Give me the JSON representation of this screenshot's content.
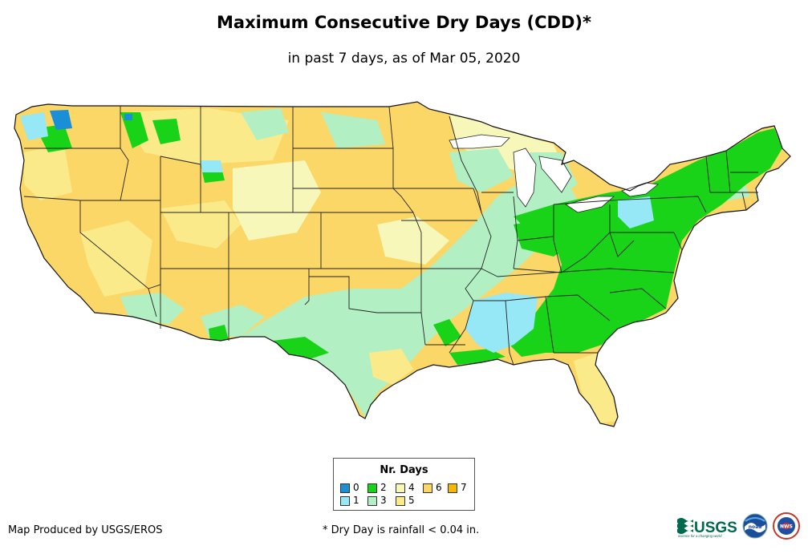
{
  "title": "Maximum Consecutive Dry Days (CDD)*",
  "subtitle": "in past 7 days, as of Mar 05, 2020",
  "legend": {
    "title": "Nr. Days",
    "items": [
      {
        "label": "0",
        "color": "#1a8fd8"
      },
      {
        "label": "1",
        "color": "#97e8f7"
      },
      {
        "label": "2",
        "color": "#18d318"
      },
      {
        "label": "3",
        "color": "#b2f0c4"
      },
      {
        "label": "4",
        "color": "#f6f7b9"
      },
      {
        "label": "5",
        "color": "#fbea8a"
      },
      {
        "label": "6",
        "color": "#fad766"
      },
      {
        "label": "7",
        "color": "#f3b900"
      }
    ]
  },
  "credit": "Map Produced by USGS/EROS",
  "footnote": "* Dry Day is rainfall < 0.04 in.",
  "logos": {
    "usgs_text": "USGS",
    "usgs_tagline": "science for a changing world",
    "noaa_text": "noaa",
    "nws_text": "NWS"
  },
  "colors": {
    "border": "#222222",
    "background": "#ffffff"
  }
}
